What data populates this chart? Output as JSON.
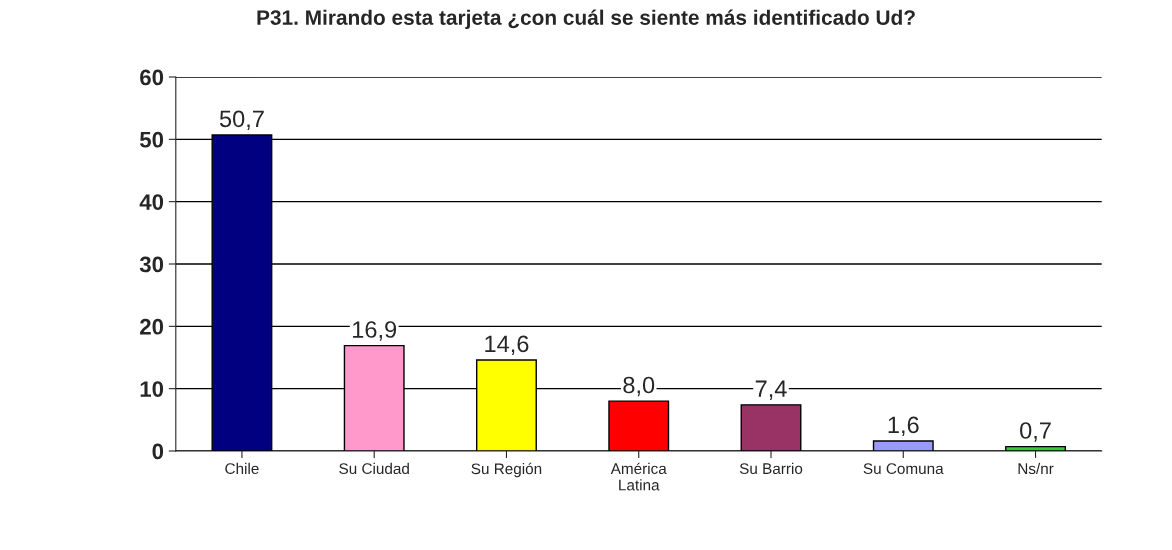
{
  "chart_data": {
    "type": "bar",
    "title": "P31. Mirando esta tarjeta ¿con cuál se siente más identificado Ud?",
    "categories": [
      "Chile",
      "Su Ciudad",
      "Su Región",
      "América\nLatina",
      "Su Barrio",
      "Su Comuna",
      "Ns/nr"
    ],
    "values": [
      50.7,
      16.9,
      14.6,
      8.0,
      7.4,
      1.6,
      0.7
    ],
    "value_labels": [
      "50,7",
      "16,9",
      "14,6",
      "8,0",
      "7,4",
      "1,6",
      "0,7"
    ],
    "colors": [
      "#000080",
      "#ff99cc",
      "#ffff00",
      "#ff0000",
      "#993366",
      "#9999ff",
      "#33cc33"
    ],
    "ylim": [
      0,
      60
    ],
    "yticks": [
      0,
      10,
      20,
      30,
      40,
      50,
      60
    ],
    "grid": "y",
    "legend": false
  }
}
